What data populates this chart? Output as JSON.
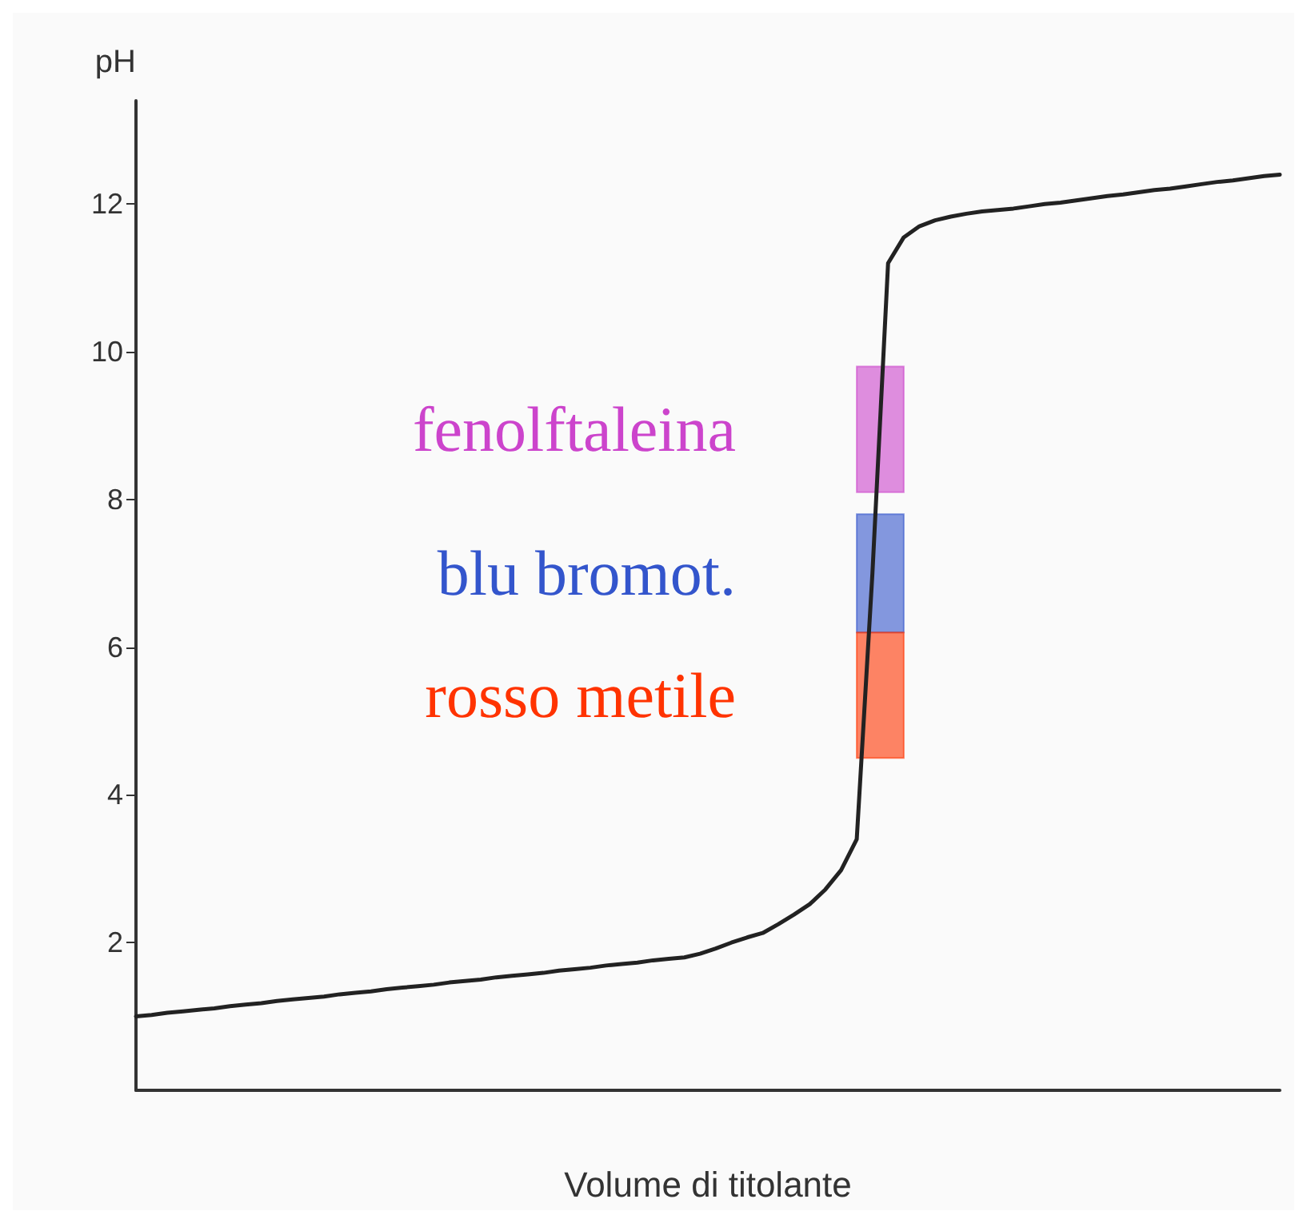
{
  "chart_data": {
    "type": "line",
    "xlabel": "Volume di titolante",
    "ylabel": "pH",
    "categories": [
      null,
      null,
      null,
      null,
      null,
      null,
      null,
      null,
      null,
      null,
      null,
      null,
      null,
      null,
      null,
      null,
      null,
      null,
      null,
      null,
      null,
      null,
      null,
      null,
      null,
      null,
      null,
      null,
      null,
      null,
      null,
      null,
      null,
      null,
      null,
      null,
      null,
      null,
      null,
      null,
      null,
      null,
      null,
      null,
      null,
      null,
      null,
      null,
      null,
      null,
      null,
      null,
      null,
      null,
      null,
      null,
      null,
      null,
      null,
      null,
      null,
      null,
      null,
      null,
      null,
      null,
      null,
      null,
      null,
      null,
      null,
      null,
      null,
      null
    ],
    "series": [
      {
        "color": "#222222",
        "values": [
          1.0,
          1.02,
          1.05,
          1.07,
          1.09,
          1.11,
          1.14,
          1.16,
          1.18,
          1.21,
          1.23,
          1.25,
          1.27,
          1.3,
          1.32,
          1.34,
          1.37,
          1.39,
          1.41,
          1.43,
          1.46,
          1.48,
          1.5,
          1.53,
          1.55,
          1.57,
          1.59,
          1.62,
          1.64,
          1.66,
          1.69,
          1.71,
          1.73,
          1.76,
          1.78,
          1.8,
          1.85,
          1.92,
          2.0,
          2.07,
          2.13,
          2.25,
          2.38,
          2.52,
          2.72,
          2.98,
          3.4,
          7.0,
          11.2,
          11.55,
          11.7,
          11.78,
          11.83,
          11.87,
          11.9,
          11.92,
          11.94,
          11.97,
          12.0,
          12.02,
          12.05,
          12.08,
          12.11,
          12.13,
          12.16,
          12.19,
          12.21,
          12.24,
          12.27,
          12.3,
          12.32,
          12.35,
          12.38,
          12.4
        ]
      }
    ],
    "ylim": [
      0,
      13.4
    ],
    "yticks": [
      2,
      4,
      6,
      8,
      10,
      12
    ],
    "marker": "none",
    "line_style": "solid",
    "bands": [
      {
        "axis": "y",
        "from": 8.1,
        "to": 9.8,
        "label": "fenolftaleina",
        "color": "#cc44cc"
      },
      {
        "axis": "y",
        "from": 6.2,
        "to": 7.8,
        "label": "blu bromot.",
        "color": "#3355cc"
      },
      {
        "axis": "y",
        "from": 4.5,
        "to": 6.2,
        "label": "rosso metile",
        "color": "#ff3300"
      }
    ]
  }
}
